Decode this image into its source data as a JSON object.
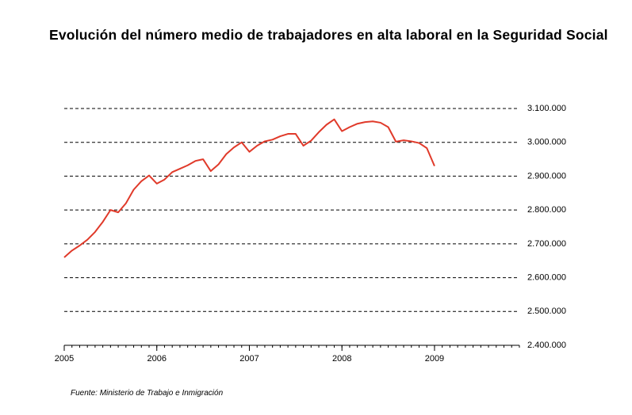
{
  "chart_data": {
    "type": "line",
    "title": "Evolución del número medio de trabajadores en alta laboral en la Seguridad Social",
    "source": "Fuente: Ministerio de Trabajo e Inmigración",
    "x": [
      2005,
      2005.083,
      2005.167,
      2005.25,
      2005.333,
      2005.417,
      2005.5,
      2005.583,
      2005.667,
      2005.75,
      2005.833,
      2005.917,
      2006,
      2006.083,
      2006.167,
      2006.25,
      2006.333,
      2006.417,
      2006.5,
      2006.583,
      2006.667,
      2006.75,
      2006.833,
      2006.917,
      2007,
      2007.083,
      2007.167,
      2007.25,
      2007.333,
      2007.417,
      2007.5,
      2007.583,
      2007.667,
      2007.75,
      2007.833,
      2007.917,
      2008,
      2008.083,
      2008.167,
      2008.25,
      2008.333,
      2008.417,
      2008.5,
      2008.583,
      2008.667,
      2008.75,
      2008.833,
      2008.917,
      2009
    ],
    "series": [
      {
        "color": "#e03a2a",
        "values": [
          2660000,
          2680000,
          2695000,
          2712000,
          2735000,
          2765000,
          2800000,
          2793000,
          2820000,
          2860000,
          2885000,
          2902000,
          2878000,
          2890000,
          2912000,
          2922000,
          2932000,
          2945000,
          2950000,
          2915000,
          2935000,
          2965000,
          2985000,
          3000000,
          2972000,
          2990000,
          3003000,
          3008000,
          3018000,
          3025000,
          3025000,
          2990000,
          3005000,
          3030000,
          3052000,
          3068000,
          3033000,
          3045000,
          3055000,
          3060000,
          3062000,
          3058000,
          3045000,
          3002000,
          3006000,
          3003000,
          2998000,
          2983000,
          2930000
        ]
      }
    ],
    "xlim": [
      2005,
      2009.917
    ],
    "xticks": [
      2005,
      2006,
      2007,
      2008,
      2009
    ],
    "ylim": [
      2400000,
      3100000
    ],
    "yticks": [
      {
        "value": 2400000,
        "label": "2.400.000"
      },
      {
        "value": 2500000,
        "label": "2.500.000"
      },
      {
        "value": 2600000,
        "label": "2.600.000"
      },
      {
        "value": 2700000,
        "label": "2.700.000"
      },
      {
        "value": 2800000,
        "label": "2.800.000"
      },
      {
        "value": 2900000,
        "label": "2.900.000"
      },
      {
        "value": 3000000,
        "label": "3.000.000"
      },
      {
        "value": 3100000,
        "label": "3.100.000"
      }
    ],
    "grid": true
  }
}
